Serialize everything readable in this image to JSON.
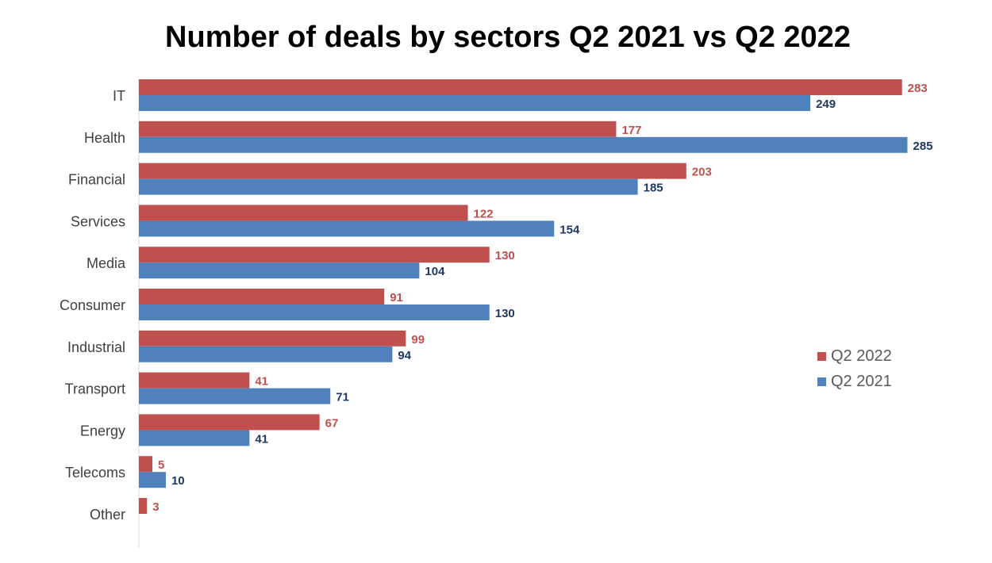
{
  "chart_data": {
    "type": "bar",
    "orientation": "horizontal",
    "title": "Number of deals by sectors Q2 2021 vs Q2 2022",
    "categories": [
      "IT",
      "Health",
      "Financial",
      "Services",
      "Media",
      "Consumer",
      "Industrial",
      "Transport",
      "Energy",
      "Telecoms",
      "Other"
    ],
    "series": [
      {
        "name": "Q2 2022",
        "color": "#C0504D",
        "label_color": "#C0504D",
        "values": [
          283,
          177,
          203,
          122,
          130,
          91,
          99,
          41,
          67,
          5,
          3
        ]
      },
      {
        "name": "Q2 2021",
        "color": "#4F81BD",
        "label_color": "#1F3864",
        "values": [
          249,
          285,
          185,
          154,
          104,
          130,
          94,
          71,
          41,
          10,
          null
        ]
      }
    ],
    "xlim": [
      0,
      290
    ],
    "grid": false,
    "data_labels": true,
    "legend_position": "right"
  }
}
